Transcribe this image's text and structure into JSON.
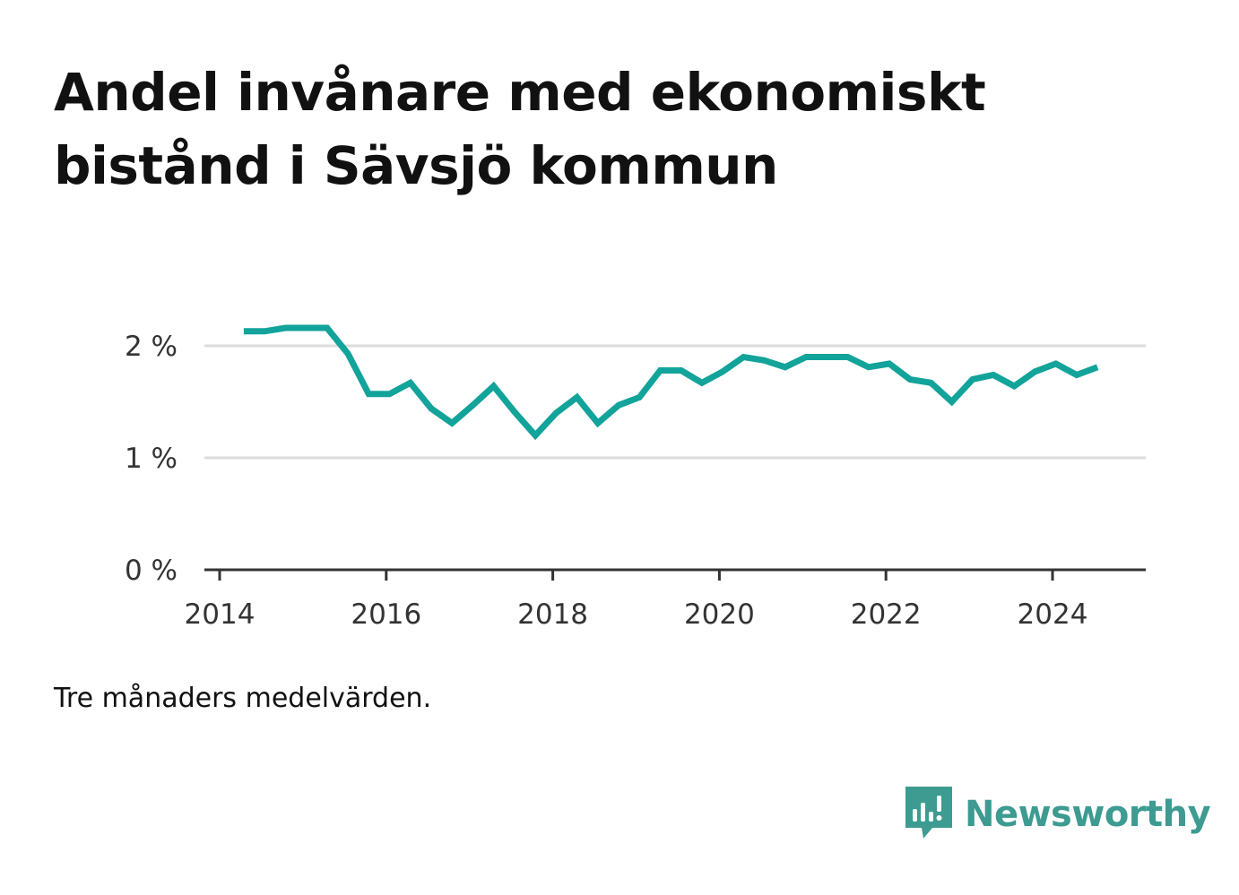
{
  "title": "Andel invånare med ekonomiskt bistånd i Sävsjö kommun",
  "note": "Tre månaders medelvärden.",
  "brand": {
    "name": "Newsworthy",
    "icon": "bar-chart-speech-bubble-icon",
    "color": "#3d9b91"
  },
  "colors": {
    "line": "#12a39a",
    "grid": "#dddddd",
    "axis": "#333333"
  },
  "chart_data": {
    "type": "line",
    "title": "Andel invånare med ekonomiskt bistånd i Sävsjö kommun",
    "xlabel": "",
    "ylabel": "",
    "xlim": [
      2014,
      2025.2
    ],
    "ylim": [
      0,
      2.4
    ],
    "x_ticks": [
      2014,
      2016,
      2018,
      2020,
      2022,
      2024
    ],
    "x_tick_labels": [
      "2014",
      "2016",
      "2018",
      "2020",
      "2022",
      "2024"
    ],
    "y_ticks": [
      0,
      1,
      2
    ],
    "y_tick_labels": [
      "0 %",
      "1 %",
      "2 %"
    ],
    "grid": true,
    "series": [
      {
        "name": "Andel invånare med ekonomiskt bistånd",
        "x": [
          2014.29,
          2014.54,
          2014.79,
          2015.04,
          2015.29,
          2015.54,
          2015.79,
          2016.04,
          2016.29,
          2016.54,
          2016.79,
          2017.04,
          2017.29,
          2017.54,
          2017.79,
          2018.04,
          2018.29,
          2018.54,
          2018.79,
          2019.04,
          2019.29,
          2019.54,
          2019.79,
          2020.04,
          2020.29,
          2020.54,
          2020.79,
          2021.04,
          2021.29,
          2021.54,
          2021.79,
          2022.04,
          2022.29,
          2022.54,
          2022.79,
          2023.04,
          2023.29,
          2023.54,
          2023.79,
          2024.04,
          2024.29,
          2024.54
        ],
        "values": [
          2.13,
          2.13,
          2.16,
          2.16,
          2.16,
          1.93,
          1.57,
          1.57,
          1.67,
          1.44,
          1.31,
          1.47,
          1.64,
          1.41,
          1.2,
          1.4,
          1.54,
          1.31,
          1.47,
          1.54,
          1.78,
          1.78,
          1.67,
          1.77,
          1.9,
          1.87,
          1.81,
          1.9,
          1.9,
          1.9,
          1.81,
          1.84,
          1.7,
          1.67,
          1.5,
          1.7,
          1.74,
          1.64,
          1.77,
          1.84,
          1.74,
          1.81
        ]
      }
    ]
  }
}
